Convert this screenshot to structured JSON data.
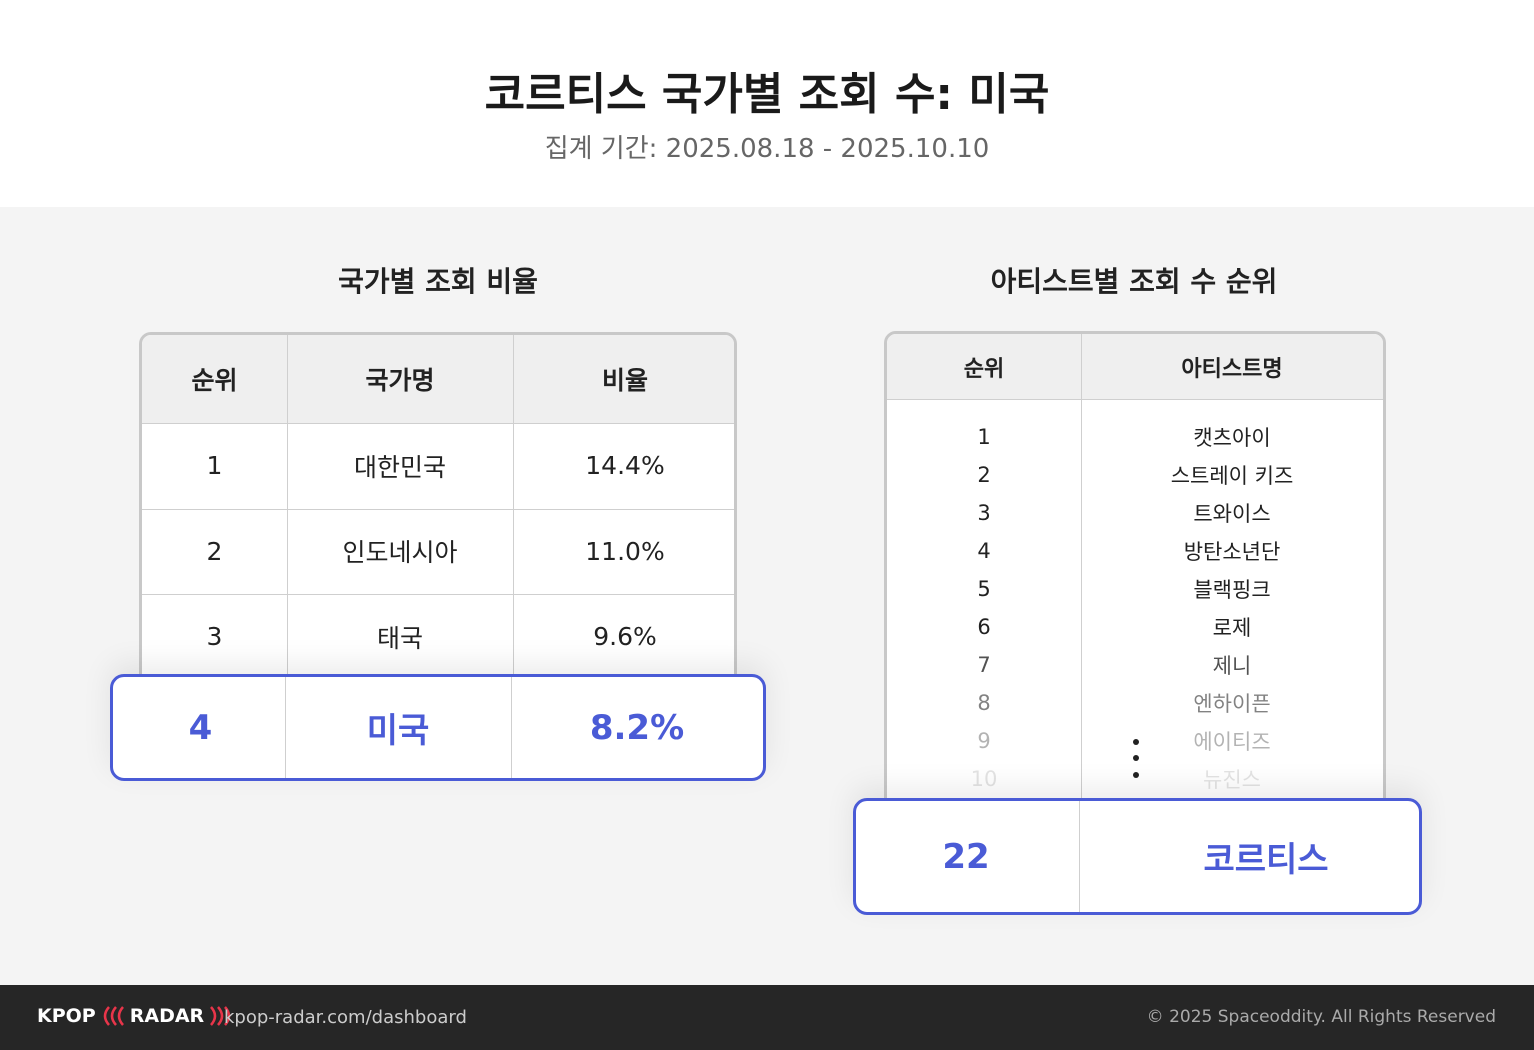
{
  "header": {
    "title": "코르티스 국가별 조회 수: 미국",
    "subtitle": "집계 기간: 2025.08.18 - 2025.10.10"
  },
  "country_panel": {
    "title": "국가별 조회 비율",
    "table": {
      "headers": [
        "순위",
        "국가명",
        "비율"
      ],
      "rows": [
        [
          "1",
          "대한민국",
          "14.4%"
        ],
        [
          "2",
          "인도네시아",
          "11.0%"
        ],
        [
          "3",
          "태국",
          "9.6%"
        ]
      ],
      "highlight": [
        "4",
        "미국",
        "8.2%"
      ]
    }
  },
  "artist_panel": {
    "title": "아티스트별 조회 수 순위",
    "table": {
      "headers": [
        "순위",
        "아티스트명"
      ],
      "rows": [
        [
          "1",
          "캣츠아이"
        ],
        [
          "2",
          "스트레이 키즈"
        ],
        [
          "3",
          "트와이스"
        ],
        [
          "4",
          "방탄소년단"
        ],
        [
          "5",
          "블랙핑크"
        ],
        [
          "6",
          "로제"
        ],
        [
          "7",
          "제니"
        ],
        [
          "8",
          "엔하이픈"
        ],
        [
          "9",
          "에이티즈"
        ],
        [
          "10",
          "뉴진스"
        ]
      ],
      "highlight": [
        "22",
        "코르티스"
      ]
    }
  },
  "footer": {
    "logo": [
      "KPOP",
      "RADAR"
    ],
    "url": "kpop-radar.com/dashboard",
    "copyright": "© 2025 Spaceoddity. All Rights Reserved"
  }
}
